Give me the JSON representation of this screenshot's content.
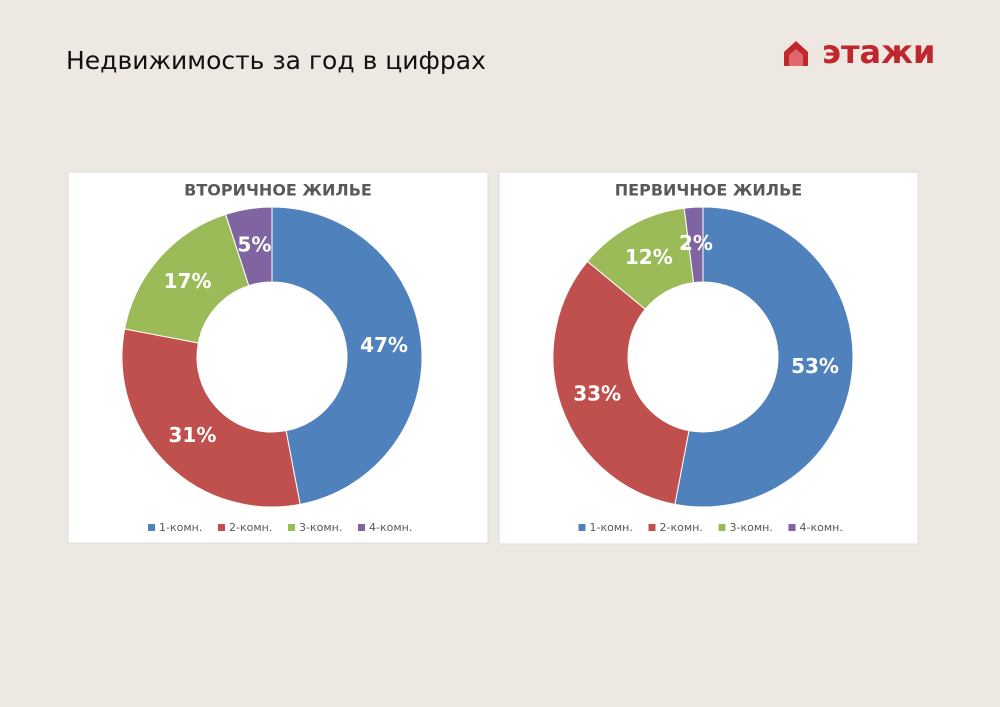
{
  "title": "Недвижимость за год в цифрах",
  "logo": "этажи",
  "chart_data": [
    {
      "type": "donut",
      "title": "ВТОРИЧНОЕ ЖИЛЬЕ",
      "categories": [
        "1-комн.",
        "2-комн.",
        "3-комн.",
        "4-комн."
      ],
      "values": [
        47,
        31,
        17,
        5
      ],
      "value_labels": [
        "47%",
        "31%",
        "17%",
        "5%"
      ],
      "colors": [
        "#4f81bd",
        "#c0504d",
        "#9bbb59",
        "#8064a2"
      ],
      "legend": "bottom"
    },
    {
      "type": "donut",
      "title": "ПЕРВИЧНОЕ ЖИЛЬЕ",
      "categories": [
        "1-комн.",
        "2-комн.",
        "3-комн.",
        "4-комн."
      ],
      "values": [
        53,
        33,
        12,
        2
      ],
      "value_labels": [
        "53%",
        "33%",
        "12%",
        "2%"
      ],
      "colors": [
        "#4f81bd",
        "#c0504d",
        "#9bbb59",
        "#8064a2"
      ],
      "legend": "bottom"
    }
  ]
}
